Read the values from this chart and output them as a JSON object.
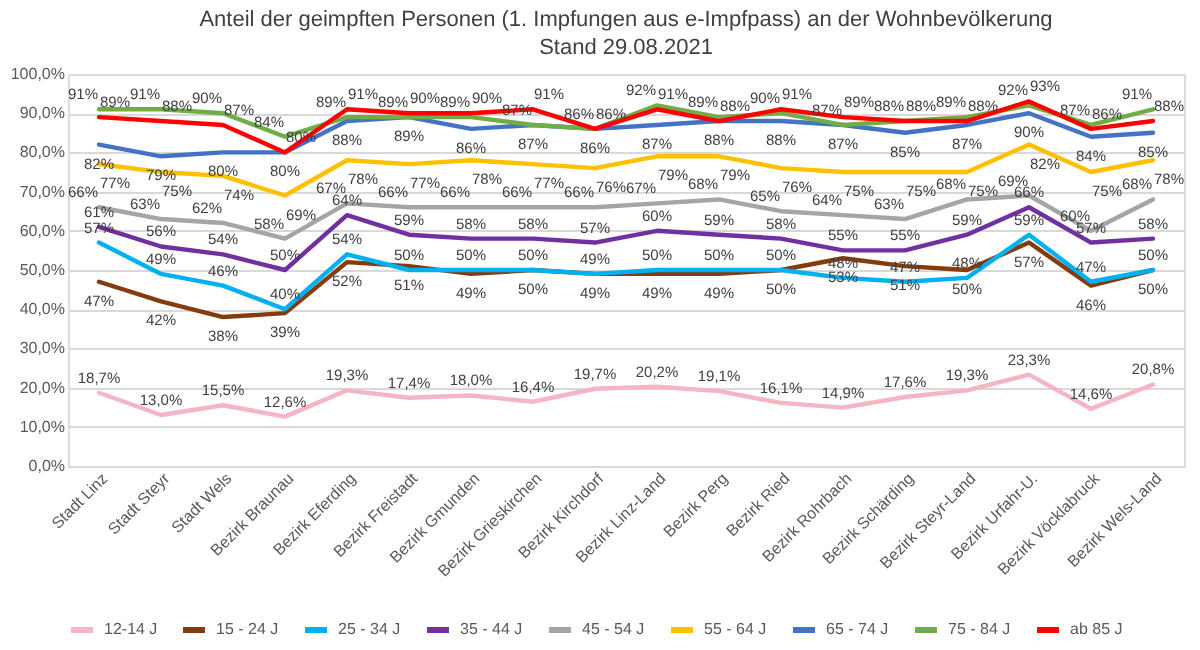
{
  "chart_data": {
    "type": "line",
    "title": "Anteil der geimpften Personen (1. Impfungen aus e-Impfpass) an der Wohnbevölkerung",
    "subtitle": "Stand 29.08.2021",
    "categories": [
      "Stadt Linz",
      "Stadt Steyr",
      "Stadt Wels",
      "Bezirk Braunau",
      "Bezirk Eferding",
      "Bezirk Freistadt",
      "Bezirk Gmunden",
      "Bezirk Grieskirchen",
      "Bezirk Kirchdorf",
      "Bezirk Linz-Land",
      "Bezirk Perg",
      "Bezirk Ried",
      "Bezirk Rohrbach",
      "Bezirk Schärding",
      "Bezirk Steyr-Land",
      "Bezirk Urfahr-U.",
      "Bezirk Vöcklabruck",
      "Bezirk Wels-Land"
    ],
    "ylim": [
      0,
      100
    ],
    "yticks": [
      {
        "value": 0,
        "label": "0,0%"
      },
      {
        "value": 10,
        "label": "10,0%"
      },
      {
        "value": 20,
        "label": "20,0%"
      },
      {
        "value": 30,
        "label": "30,0%"
      },
      {
        "value": 40,
        "label": "40,0%"
      },
      {
        "value": 50,
        "label": "50,0%"
      },
      {
        "value": 60,
        "label": "60,0%"
      },
      {
        "value": 70,
        "label": "70,0%"
      },
      {
        "value": 80,
        "label": "80,0%"
      },
      {
        "value": 90,
        "label": "90,0%"
      },
      {
        "value": 100,
        "label": "100,0%"
      }
    ],
    "grid": "y",
    "legend": "bottom",
    "marker": "none",
    "line_style": "solid",
    "series": [
      {
        "name": "12-14 J",
        "color": "#f4b6c2",
        "values": [
          18.7,
          13.0,
          15.5,
          12.6,
          19.3,
          17.4,
          18.0,
          16.4,
          19.7,
          20.2,
          19.1,
          16.1,
          14.9,
          17.6,
          19.3,
          23.3,
          14.6,
          20.8
        ],
        "value_labels": [
          "18,7%",
          "13,0%",
          "15,5%",
          "12,6%",
          "19,3%",
          "17,4%",
          "18,0%",
          "16,4%",
          "19,7%",
          "20,2%",
          "19,1%",
          "16,1%",
          "14,9%",
          "17,6%",
          "19,3%",
          "23,3%",
          "14,6%",
          "20,8%"
        ]
      },
      {
        "name": "15 - 24 J",
        "color": "#843c0c",
        "values": [
          47,
          42,
          38,
          39,
          52,
          51,
          49,
          50,
          49,
          49,
          49,
          50,
          53,
          51,
          50,
          57,
          46,
          50
        ],
        "value_labels": [
          "47%",
          "42%",
          "38%",
          "39%",
          "52%",
          "51%",
          "49%",
          "50%",
          "49%",
          "49%",
          "49%",
          "50%",
          "53%",
          "51%",
          "50%",
          "57%",
          "46%",
          "50%"
        ]
      },
      {
        "name": "25 - 34 J",
        "color": "#00b0f0",
        "values": [
          57,
          49,
          46,
          40,
          54,
          50,
          50,
          50,
          49,
          50,
          50,
          50,
          48,
          47,
          48,
          59,
          47,
          50
        ],
        "value_labels": [
          "57%",
          "49%",
          "46%",
          "40%",
          "54%",
          "50%",
          "50%",
          "50%",
          "49%",
          "50%",
          "50%",
          "50%",
          "48%",
          "47%",
          "48%",
          "59%",
          "47%",
          "50%"
        ]
      },
      {
        "name": "35 - 44 J",
        "color": "#7030a0",
        "values": [
          61,
          56,
          54,
          50,
          64,
          59,
          58,
          58,
          57,
          60,
          59,
          58,
          55,
          55,
          59,
          66,
          57,
          58
        ],
        "value_labels": [
          "61%",
          "56%",
          "54%",
          "50%",
          "64%",
          "59%",
          "58%",
          "58%",
          "57%",
          "60%",
          "59%",
          "58%",
          "55%",
          "55%",
          "59%",
          "66%",
          "57%",
          "58%"
        ]
      },
      {
        "name": "45 - 54 J",
        "color": "#a5a5a5",
        "values": [
          66,
          63,
          62,
          58,
          67,
          66,
          66,
          66,
          66,
          67,
          68,
          65,
          64,
          63,
          68,
          69,
          60,
          68
        ],
        "value_labels": [
          "66%",
          "63%",
          "62%",
          "58%",
          "67%",
          "66%",
          "66%",
          "66%",
          "66%",
          "67%",
          "68%",
          "65%",
          "64%",
          "63%",
          "68%",
          "69%",
          "60%",
          "68%"
        ]
      },
      {
        "name": "55 - 64 J",
        "color": "#ffc000",
        "values": [
          77,
          75,
          74,
          69,
          78,
          77,
          78,
          77,
          76,
          79,
          79,
          76,
          75,
          75,
          75,
          82,
          75,
          78
        ],
        "value_labels": [
          "77%",
          "75%",
          "74%",
          "69%",
          "78%",
          "77%",
          "78%",
          "77%",
          "76%",
          "79%",
          "79%",
          "76%",
          "75%",
          "75%",
          "75%",
          "82%",
          "75%",
          "78%"
        ]
      },
      {
        "name": "65 - 74 J",
        "color": "#4472c4",
        "values": [
          82,
          79,
          80,
          80,
          88,
          89,
          86,
          87,
          86,
          87,
          88,
          88,
          87,
          85,
          87,
          90,
          84,
          85
        ],
        "value_labels": [
          "82%",
          "79%",
          "80%",
          "80%",
          "88%",
          "89%",
          "86%",
          "87%",
          "86%",
          "87%",
          "88%",
          "88%",
          "87%",
          "85%",
          "87%",
          "90%",
          "84%",
          "85%"
        ]
      },
      {
        "name": "75 - 84 J",
        "color": "#70ad47",
        "values": [
          91,
          91,
          90,
          84,
          89,
          89,
          89,
          87,
          86,
          92,
          89,
          90,
          87,
          88,
          89,
          92,
          87,
          91
        ],
        "value_labels": [
          "91%",
          "91%",
          "90%",
          "84%",
          "89%",
          "89%",
          "89%",
          "87%",
          "86%",
          "92%",
          "89%",
          "90%",
          "87%",
          "88%",
          "89%",
          "92%",
          "87%",
          "91%"
        ]
      },
      {
        "name": "ab 85 J",
        "color": "#ff0000",
        "values": [
          89,
          88,
          87,
          80,
          91,
          90,
          90,
          91,
          86,
          91,
          88,
          91,
          89,
          88,
          88,
          93,
          86,
          88
        ],
        "value_labels": [
          "89%",
          "88%",
          "87%",
          "80%",
          "91%",
          "90%",
          "90%",
          "91%",
          "86%",
          "91%",
          "88%",
          "91%",
          "89%",
          "88%",
          "88%",
          "93%",
          "86%",
          "88%"
        ]
      }
    ]
  }
}
